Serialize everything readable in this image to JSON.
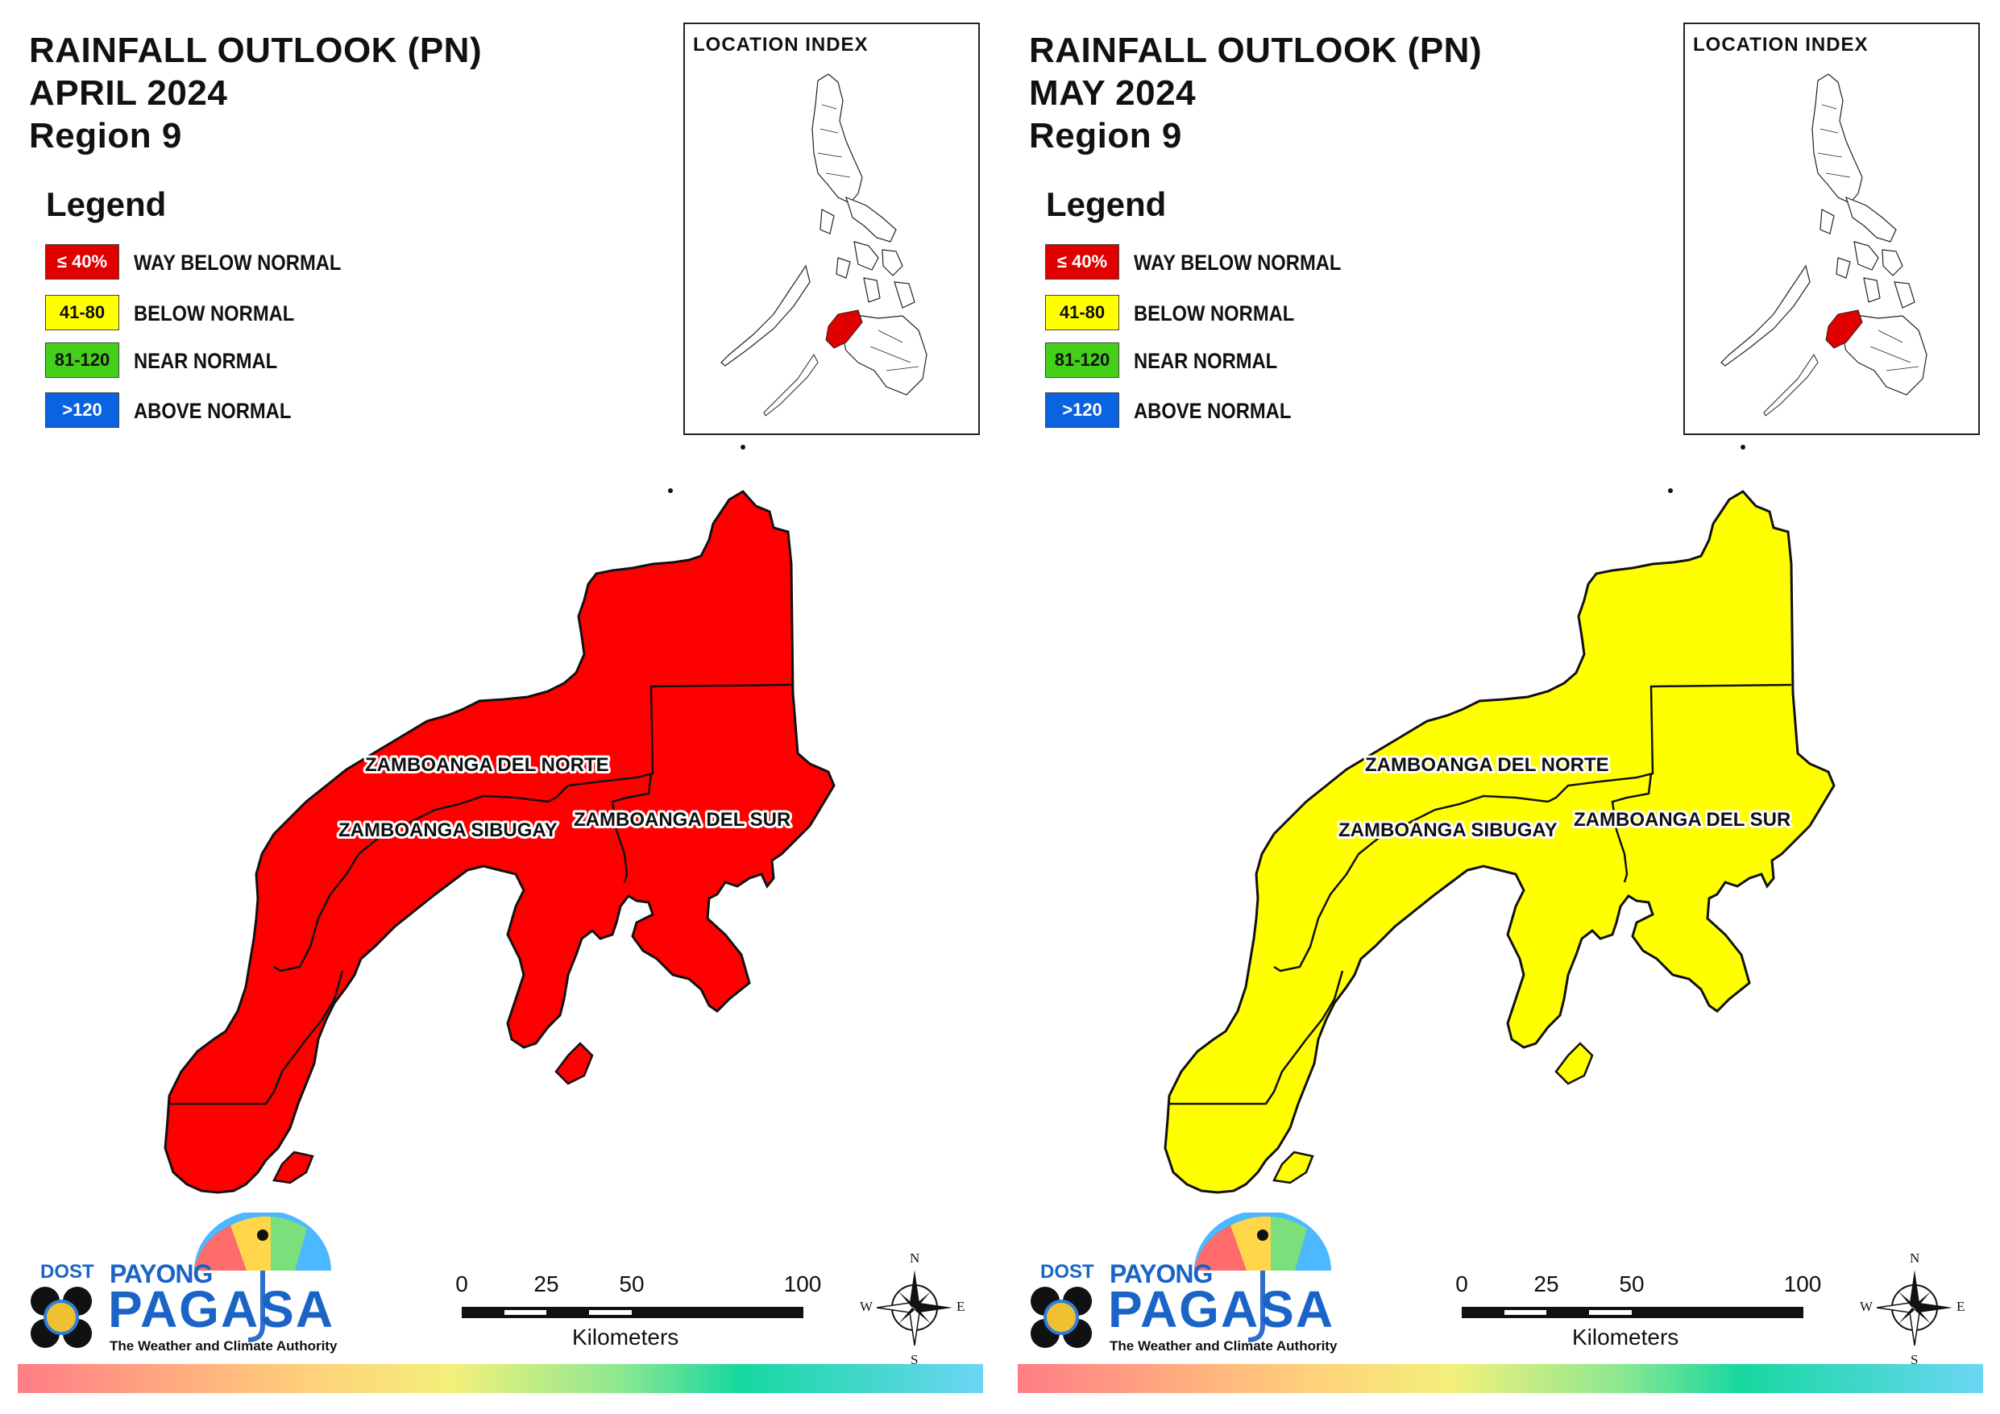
{
  "panels": [
    {
      "title_line1": "RAINFALL OUTLOOK (PN)",
      "title_line2": "APRIL 2024",
      "title_line3": "Region 9",
      "fill_color": "#ff0000",
      "category": "WAY BELOW NORMAL"
    },
    {
      "title_line1": "RAINFALL OUTLOOK (PN)",
      "title_line2": "MAY 2024",
      "title_line3": "Region 9",
      "fill_color": "#ffff00",
      "category": "BELOW NORMAL"
    }
  ],
  "legend": {
    "title": "Legend",
    "items": [
      {
        "range": "≤ 40%",
        "label": "WAY BELOW NORMAL",
        "color": "#e00000",
        "text_color": "#ffffff"
      },
      {
        "range": "41-80",
        "label": "BELOW NORMAL",
        "color": "#ffff00",
        "text_color": "#111111"
      },
      {
        "range": "81-120",
        "label": "NEAR NORMAL",
        "color": "#44d01a",
        "text_color": "#111111"
      },
      {
        "range": ">120",
        "label": "ABOVE NORMAL",
        "color": "#0a63e0",
        "text_color": "#ffffff"
      }
    ]
  },
  "location_index": {
    "title": "LOCATION INDEX",
    "highlight_color": "#e00000"
  },
  "provinces": {
    "norte": "ZAMBOANGA DEL NORTE",
    "sibugay": "ZAMBOANGA SIBUGAY",
    "sur": "ZAMBOANGA DEL SUR"
  },
  "scale_bar": {
    "ticks": [
      "0",
      "25",
      "50",
      "100"
    ],
    "unit": "Kilometers"
  },
  "compass": {
    "n": "N",
    "s": "S",
    "e": "E",
    "w": "W"
  },
  "logo": {
    "dost": "DOST",
    "payong": "PAYONG",
    "pagasa": "PAGASA",
    "tagline": "The Weather and Climate Authority"
  }
}
